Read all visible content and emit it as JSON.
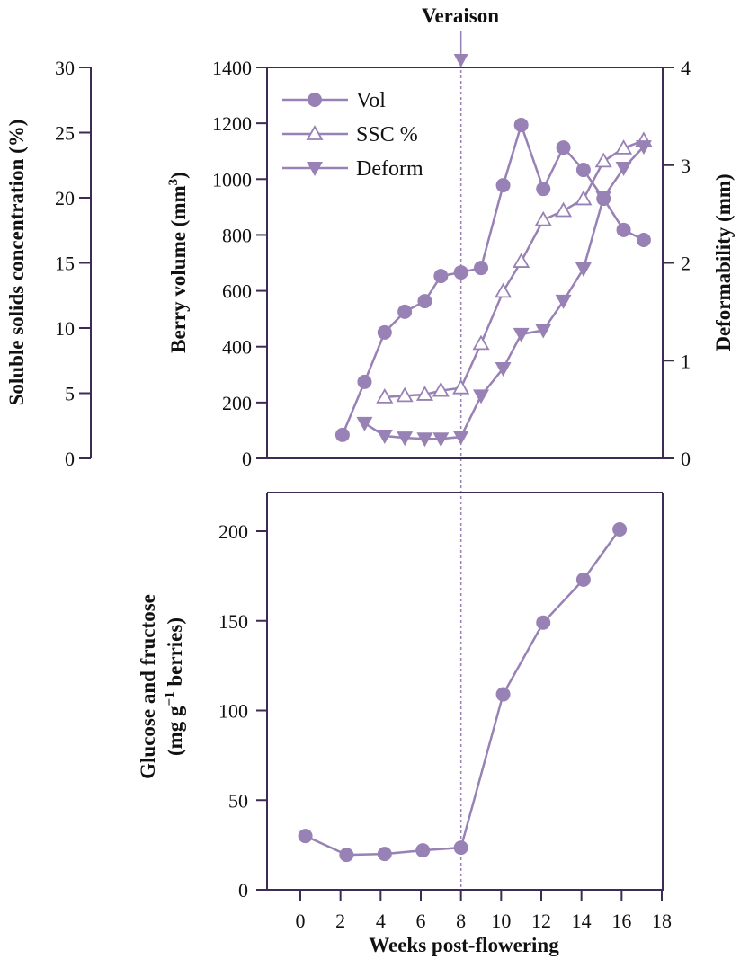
{
  "chart_data": [
    {
      "type": "line",
      "panel": "top",
      "annotation": {
        "label": "Veraison",
        "x": 8
      },
      "xlim": [
        -1.66,
        18
      ],
      "axes": {
        "ssc": {
          "label": "Soluble solids concentration (%)",
          "ylim": [
            0,
            30
          ],
          "ticks": [
            0,
            5,
            10,
            15,
            20,
            25,
            30
          ]
        },
        "volume": {
          "label": "Berry volume (mm³)",
          "label_main": "Berry volume (mm",
          "label_sup": "3",
          "label_end": ")",
          "ylim": [
            0,
            1400
          ],
          "ticks": [
            0,
            200,
            400,
            600,
            800,
            1000,
            1200,
            1400
          ]
        },
        "deform": {
          "label": "Deformability (mm)",
          "ylim": [
            0,
            4
          ],
          "ticks": [
            0,
            1,
            2,
            3,
            4
          ]
        }
      },
      "legend": {
        "position": "top-left",
        "entries": [
          "Vol",
          "SSC %",
          "Deform"
        ]
      },
      "series": [
        {
          "name": "Vol",
          "axis": "volume",
          "marker": "filled-circle",
          "x": [
            2.1,
            3.2,
            4.2,
            5.2,
            6.2,
            7.0,
            8.0,
            9.0,
            10.1,
            11.0,
            12.1,
            13.1,
            14.1,
            15.1,
            16.1,
            17.1
          ],
          "y": [
            84,
            274,
            451,
            525,
            563,
            653,
            666,
            682,
            978,
            1194,
            965,
            1113,
            1033,
            930,
            818,
            782
          ]
        },
        {
          "name": "SSC %",
          "axis": "ssc",
          "marker": "open-triangle-up",
          "x": [
            4.2,
            5.2,
            6.2,
            7.0,
            8.0,
            9.0,
            10.1,
            11.0,
            12.1,
            13.1,
            14.1,
            15.1,
            16.1,
            17.1
          ],
          "y": [
            4.7,
            4.8,
            4.9,
            5.2,
            5.4,
            8.8,
            12.8,
            15.1,
            18.3,
            19.0,
            19.9,
            22.8,
            23.8,
            24.4
          ]
        },
        {
          "name": "Deform",
          "axis": "deform",
          "marker": "filled-triangle-down",
          "x": [
            3.2,
            4.2,
            5.2,
            6.2,
            7.0,
            8.0,
            9.0,
            10.1,
            11.0,
            12.1,
            13.1,
            14.1,
            15.1,
            16.1,
            17.1
          ],
          "y": [
            0.36,
            0.23,
            0.21,
            0.2,
            0.2,
            0.22,
            0.64,
            0.92,
            1.27,
            1.31,
            1.61,
            1.94,
            2.67,
            2.97,
            3.19
          ]
        }
      ]
    },
    {
      "type": "line",
      "panel": "bottom",
      "xlabel": "Weeks post-flowering",
      "xlim": [
        -1.66,
        18
      ],
      "xticks": [
        0,
        2,
        4,
        6,
        8,
        10,
        12,
        14,
        16,
        18
      ],
      "ylabel_line1": "Glucose and fructose",
      "ylabel_line2_pre": "(mg g",
      "ylabel_line2_sup": "−1",
      "ylabel_line2_post": " berries)",
      "ylim": [
        0,
        222
      ],
      "yticks": [
        0,
        50,
        100,
        150,
        200
      ],
      "series": [
        {
          "name": "Glucose and fructose",
          "marker": "filled-circle",
          "x": [
            0.25,
            2.3,
            4.2,
            6.1,
            8.0,
            10.1,
            12.1,
            14.1,
            15.9
          ],
          "y": [
            30,
            19.5,
            20,
            22,
            23.5,
            109,
            149,
            173,
            201
          ]
        }
      ]
    }
  ],
  "colors": {
    "series": "#9881b4",
    "axis": "#3d2b55",
    "text": "#111111"
  }
}
